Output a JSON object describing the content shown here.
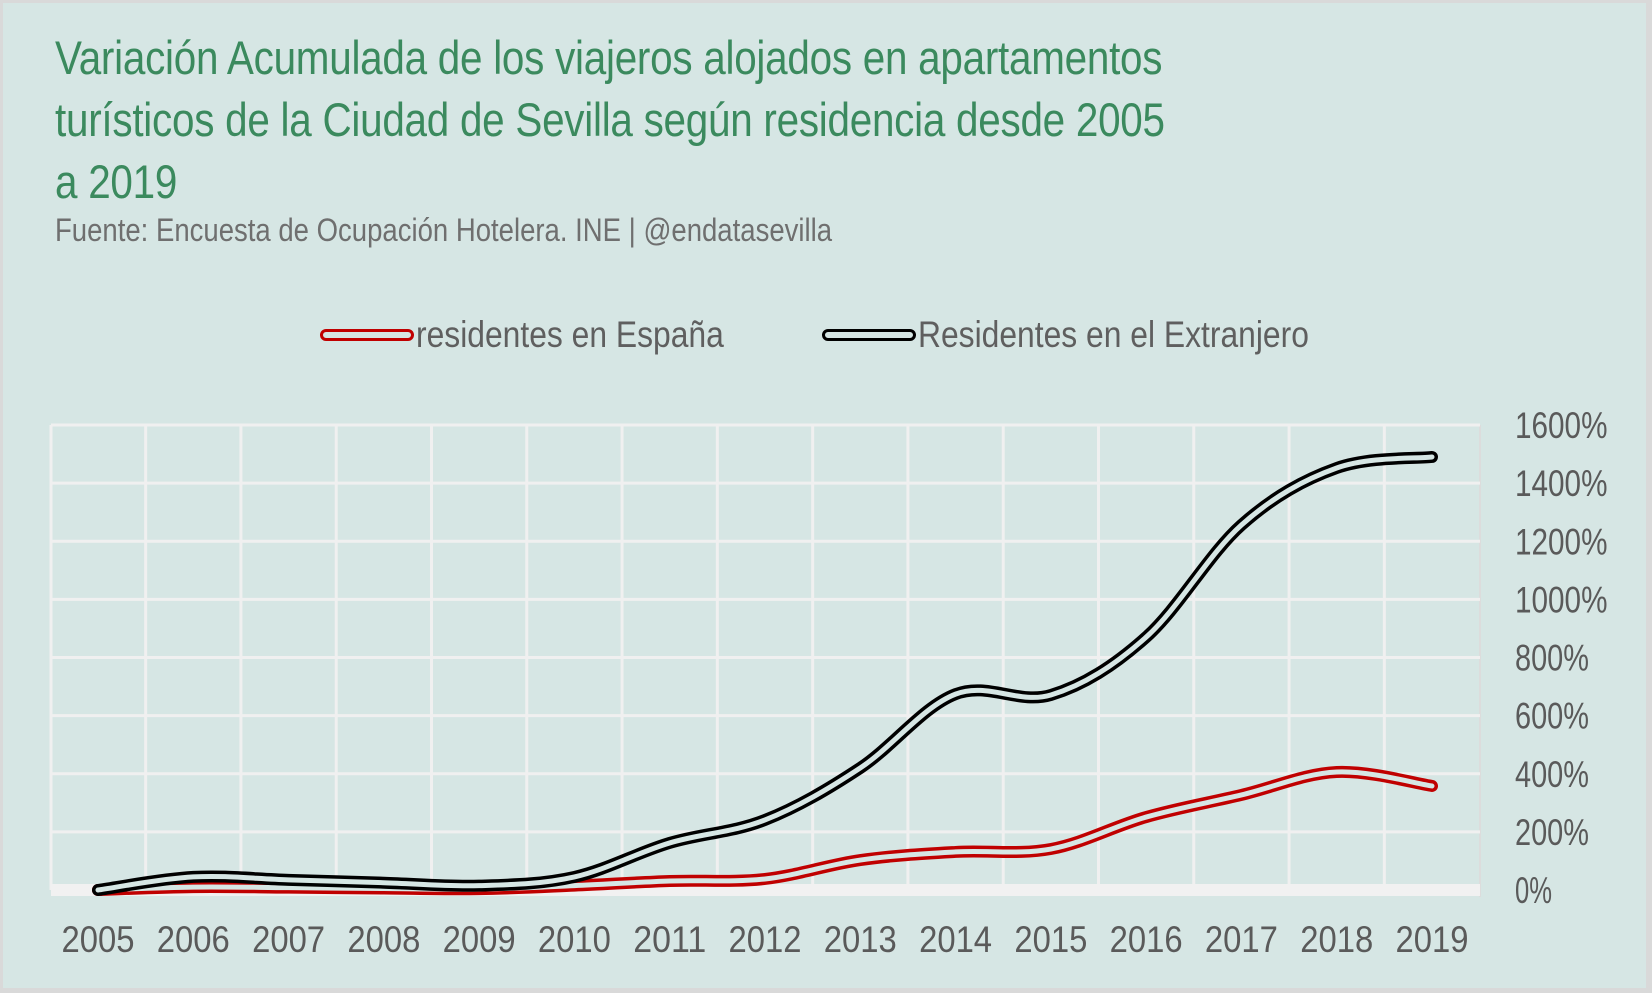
{
  "title_lines": [
    "Variación Acumulada de los viajeros alojados en apartamentos",
    "turísticos de la Ciudad de Sevilla según residencia desde 2005",
    "a 2019"
  ],
  "subtitle": "Fuente: Encuesta de Ocupación Hotelera. INE | @endatasevilla",
  "colors": {
    "background": "#d6e6e4",
    "title": "#3b8a5e",
    "grid": "#f0f0f0",
    "residentes_espana": "#c00000",
    "residentes_extranjero": "#000000"
  },
  "chart_data": {
    "type": "line",
    "title": "Variación Acumulada de los viajeros alojados en apartamentos turísticos de la Ciudad de Sevilla según residencia desde 2005 a 2019",
    "subtitle": "Fuente: Encuesta de Ocupación Hotelera. INE | @endatasevilla",
    "xlabel": "",
    "ylabel": "",
    "x": [
      "2005",
      "2006",
      "2007",
      "2008",
      "2009",
      "2010",
      "2011",
      "2012",
      "2013",
      "2014",
      "2015",
      "2016",
      "2017",
      "2018",
      "2019"
    ],
    "series": [
      {
        "name": "residentes en España",
        "color": "#c00000",
        "values": [
          0,
          10,
          8,
          5,
          3,
          15,
          31,
          38,
          103,
          131,
          141,
          251,
          327,
          406,
          358
        ]
      },
      {
        "name": "Residentes en el Extranjero",
        "color": "#000000",
        "values": [
          0,
          45,
          35,
          25,
          15,
          45,
          162,
          241,
          420,
          674,
          671,
          870,
          1256,
          1452,
          1490
        ]
      }
    ],
    "ylim": [
      0,
      1600
    ],
    "yticks": [
      0,
      200,
      400,
      600,
      800,
      1000,
      1200,
      1400,
      1600
    ],
    "ytick_labels": [
      "0%",
      "200%",
      "400%",
      "600%",
      "800%",
      "1000%",
      "1200%",
      "1400%",
      "1600%"
    ],
    "y_axis_side": "right",
    "grid": true,
    "smooth": true,
    "legend_position": "top-center"
  }
}
